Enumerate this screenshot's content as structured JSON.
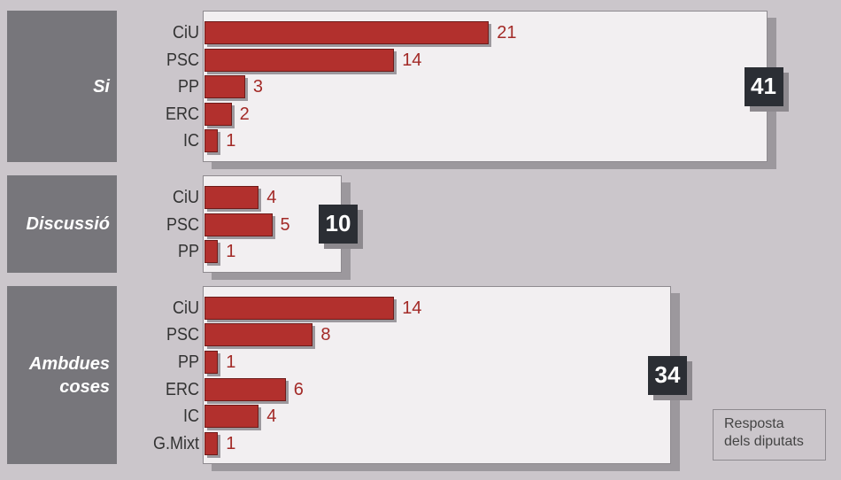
{
  "chart_data": {
    "type": "bar",
    "groups": [
      {
        "label": "Si",
        "total": 41,
        "categories": [
          "CiU",
          "PSC",
          "PP",
          "ERC",
          "IC"
        ],
        "values": [
          21,
          14,
          3,
          2,
          1
        ]
      },
      {
        "label": "Discussió",
        "total": 10,
        "categories": [
          "CiU",
          "PSC",
          "PP"
        ],
        "values": [
          4,
          5,
          1
        ]
      },
      {
        "label": "Ambdues coses",
        "total": 34,
        "categories": [
          "CiU",
          "PSC",
          "PP",
          "ERC",
          "IC",
          "G.Mixt"
        ],
        "values": [
          14,
          8,
          1,
          6,
          4,
          1
        ]
      }
    ],
    "color": "#b2302d",
    "note": "Resposta dels diputats"
  }
}
